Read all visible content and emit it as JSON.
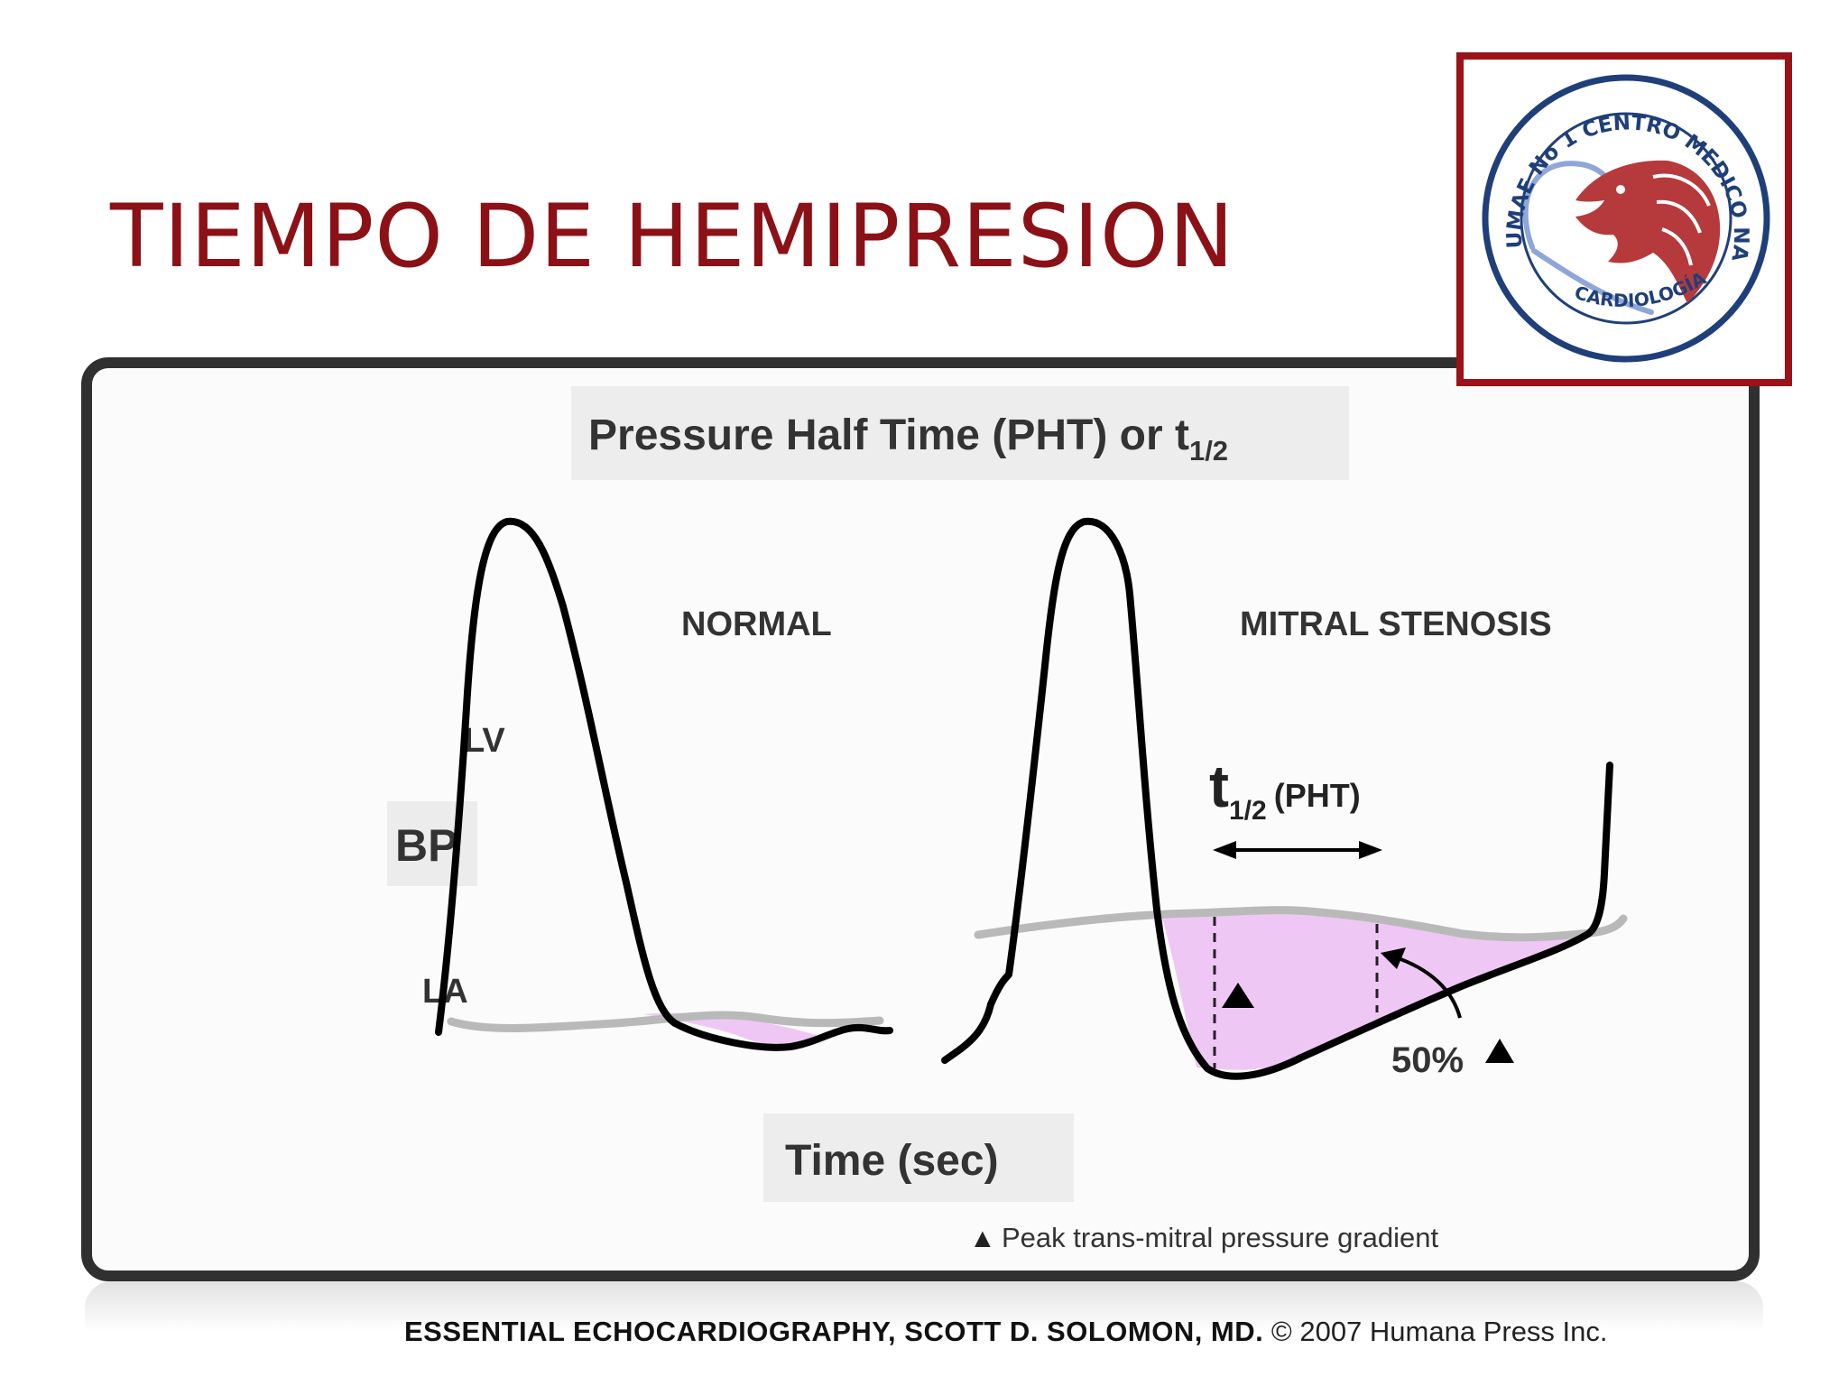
{
  "slide": {
    "title": "TIEMPO DE HEMIPRESION"
  },
  "logo": {
    "ring_text": "UMAE No 1 CENTRO MEDICO NACIONAL BAJÍO",
    "bottom_text": "CARDIOLOGÍA",
    "colors": {
      "frame": "#9b1218",
      "lion": "#b63a3c",
      "heart": "#8fa6d8",
      "ring": "#1f3f7a"
    }
  },
  "figure": {
    "heading_main": "Pressure Half Time (PHT) or t",
    "heading_sub": "1/2",
    "label_normal": "NORMAL",
    "label_stenosis": "MITRAL STENOSIS",
    "label_lv": "LV",
    "label_bp": "BP",
    "label_la": "LA",
    "pht_t": "t",
    "pht_sub": "1/2",
    "pht_rest": "(PHT)",
    "label_percent": "50%",
    "x_axis_label": "Time (sec)",
    "legend_symbol": "▲",
    "legend_text": "Peak trans-mitral pressure gradient",
    "colors": {
      "lv_curve": "#000000",
      "la_curve": "#b9b9b9",
      "gradient_fill": "#efc7f4"
    }
  },
  "citation": {
    "bold": "ESSENTIAL ECHOCARDIOGRAPHY, SCOTT D. SOLOMON, MD.",
    "rest": " © 2007 Humana Press Inc."
  }
}
